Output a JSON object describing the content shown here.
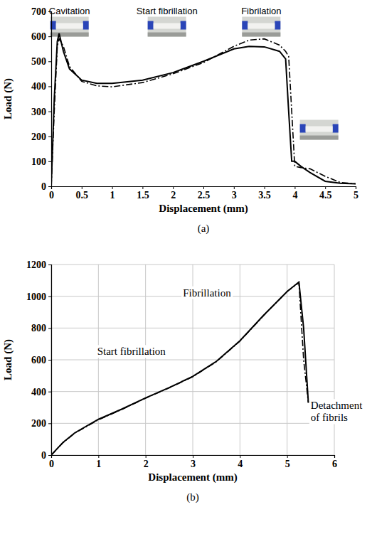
{
  "chart_data": [
    {
      "type": "line",
      "title": "(a)",
      "x_label": "Displacement (mm)",
      "y_label": "Load (N)",
      "x": [
        0,
        0.05,
        0.1,
        0.13,
        0.2,
        0.3,
        0.5,
        0.75,
        1,
        1.5,
        2,
        2.5,
        3,
        3.25,
        3.5,
        3.75,
        3.85,
        3.9,
        3.95,
        4,
        4.1,
        4.25,
        4.5,
        4.75,
        5
      ],
      "series": [
        {
          "color": "#000000",
          "line_style": "solid",
          "values": [
            0,
            350,
            580,
            612,
            540,
            470,
            425,
            412,
            412,
            425,
            455,
            500,
            550,
            560,
            558,
            540,
            510,
            300,
            100,
            100,
            80,
            55,
            20,
            12,
            10
          ]
        },
        {
          "color": "#000000",
          "line_style": "dashdot",
          "values": [
            0,
            300,
            560,
            590,
            560,
            480,
            420,
            402,
            398,
            415,
            450,
            495,
            560,
            585,
            590,
            565,
            540,
            520,
            300,
            80,
            75,
            70,
            40,
            15,
            10
          ]
        }
      ],
      "xlim": [
        0,
        5
      ],
      "xticks": [
        0,
        0.5,
        1,
        1.5,
        2,
        2.5,
        3,
        3.5,
        4,
        4.5,
        5
      ],
      "ylim": [
        0,
        700
      ],
      "yticks": [
        0,
        100,
        200,
        300,
        400,
        500,
        600,
        700
      ],
      "grid": false,
      "annotations": [
        {
          "text": "Cavitation",
          "x": 0.3,
          "y": 690
        },
        {
          "text": "Start fibrillation",
          "x": 1.9,
          "y": 690
        },
        {
          "text": "Fibrilation",
          "x": 3.45,
          "y": 690
        }
      ]
    },
    {
      "type": "line",
      "title": "(b)",
      "x_label": "Displacement (mm)",
      "y_label": "Load (N)",
      "x": [
        0,
        0.25,
        0.5,
        1,
        1.5,
        2,
        2.5,
        3,
        3.5,
        4,
        4.5,
        5,
        5.25,
        5.35,
        5.45
      ],
      "series": [
        {
          "color": "#000000",
          "line_style": "solid",
          "values": [
            0,
            80,
            140,
            225,
            290,
            360,
            425,
            495,
            590,
            720,
            880,
            1030,
            1090,
            800,
            330
          ]
        },
        {
          "color": "#000000",
          "line_style": "dashdot",
          "values": [
            0,
            78,
            138,
            222,
            288,
            358,
            423,
            493,
            588,
            718,
            878,
            1030,
            1085,
            600,
            330
          ]
        }
      ],
      "xlim": [
        0,
        6
      ],
      "xticks": [
        0,
        1,
        2,
        3,
        4,
        5,
        6
      ],
      "ylim": [
        0,
        1200
      ],
      "yticks": [
        0,
        200,
        400,
        600,
        800,
        1000,
        1200
      ],
      "grid": true,
      "annotations": [
        {
          "text": "Fibrillation",
          "x": 3.3,
          "y": 1000
        },
        {
          "text": "Start fibrillation",
          "x": 1.7,
          "y": 630
        },
        {
          "text": "Detachment of fibrils",
          "x": 5.5,
          "y": 290
        }
      ]
    }
  ]
}
